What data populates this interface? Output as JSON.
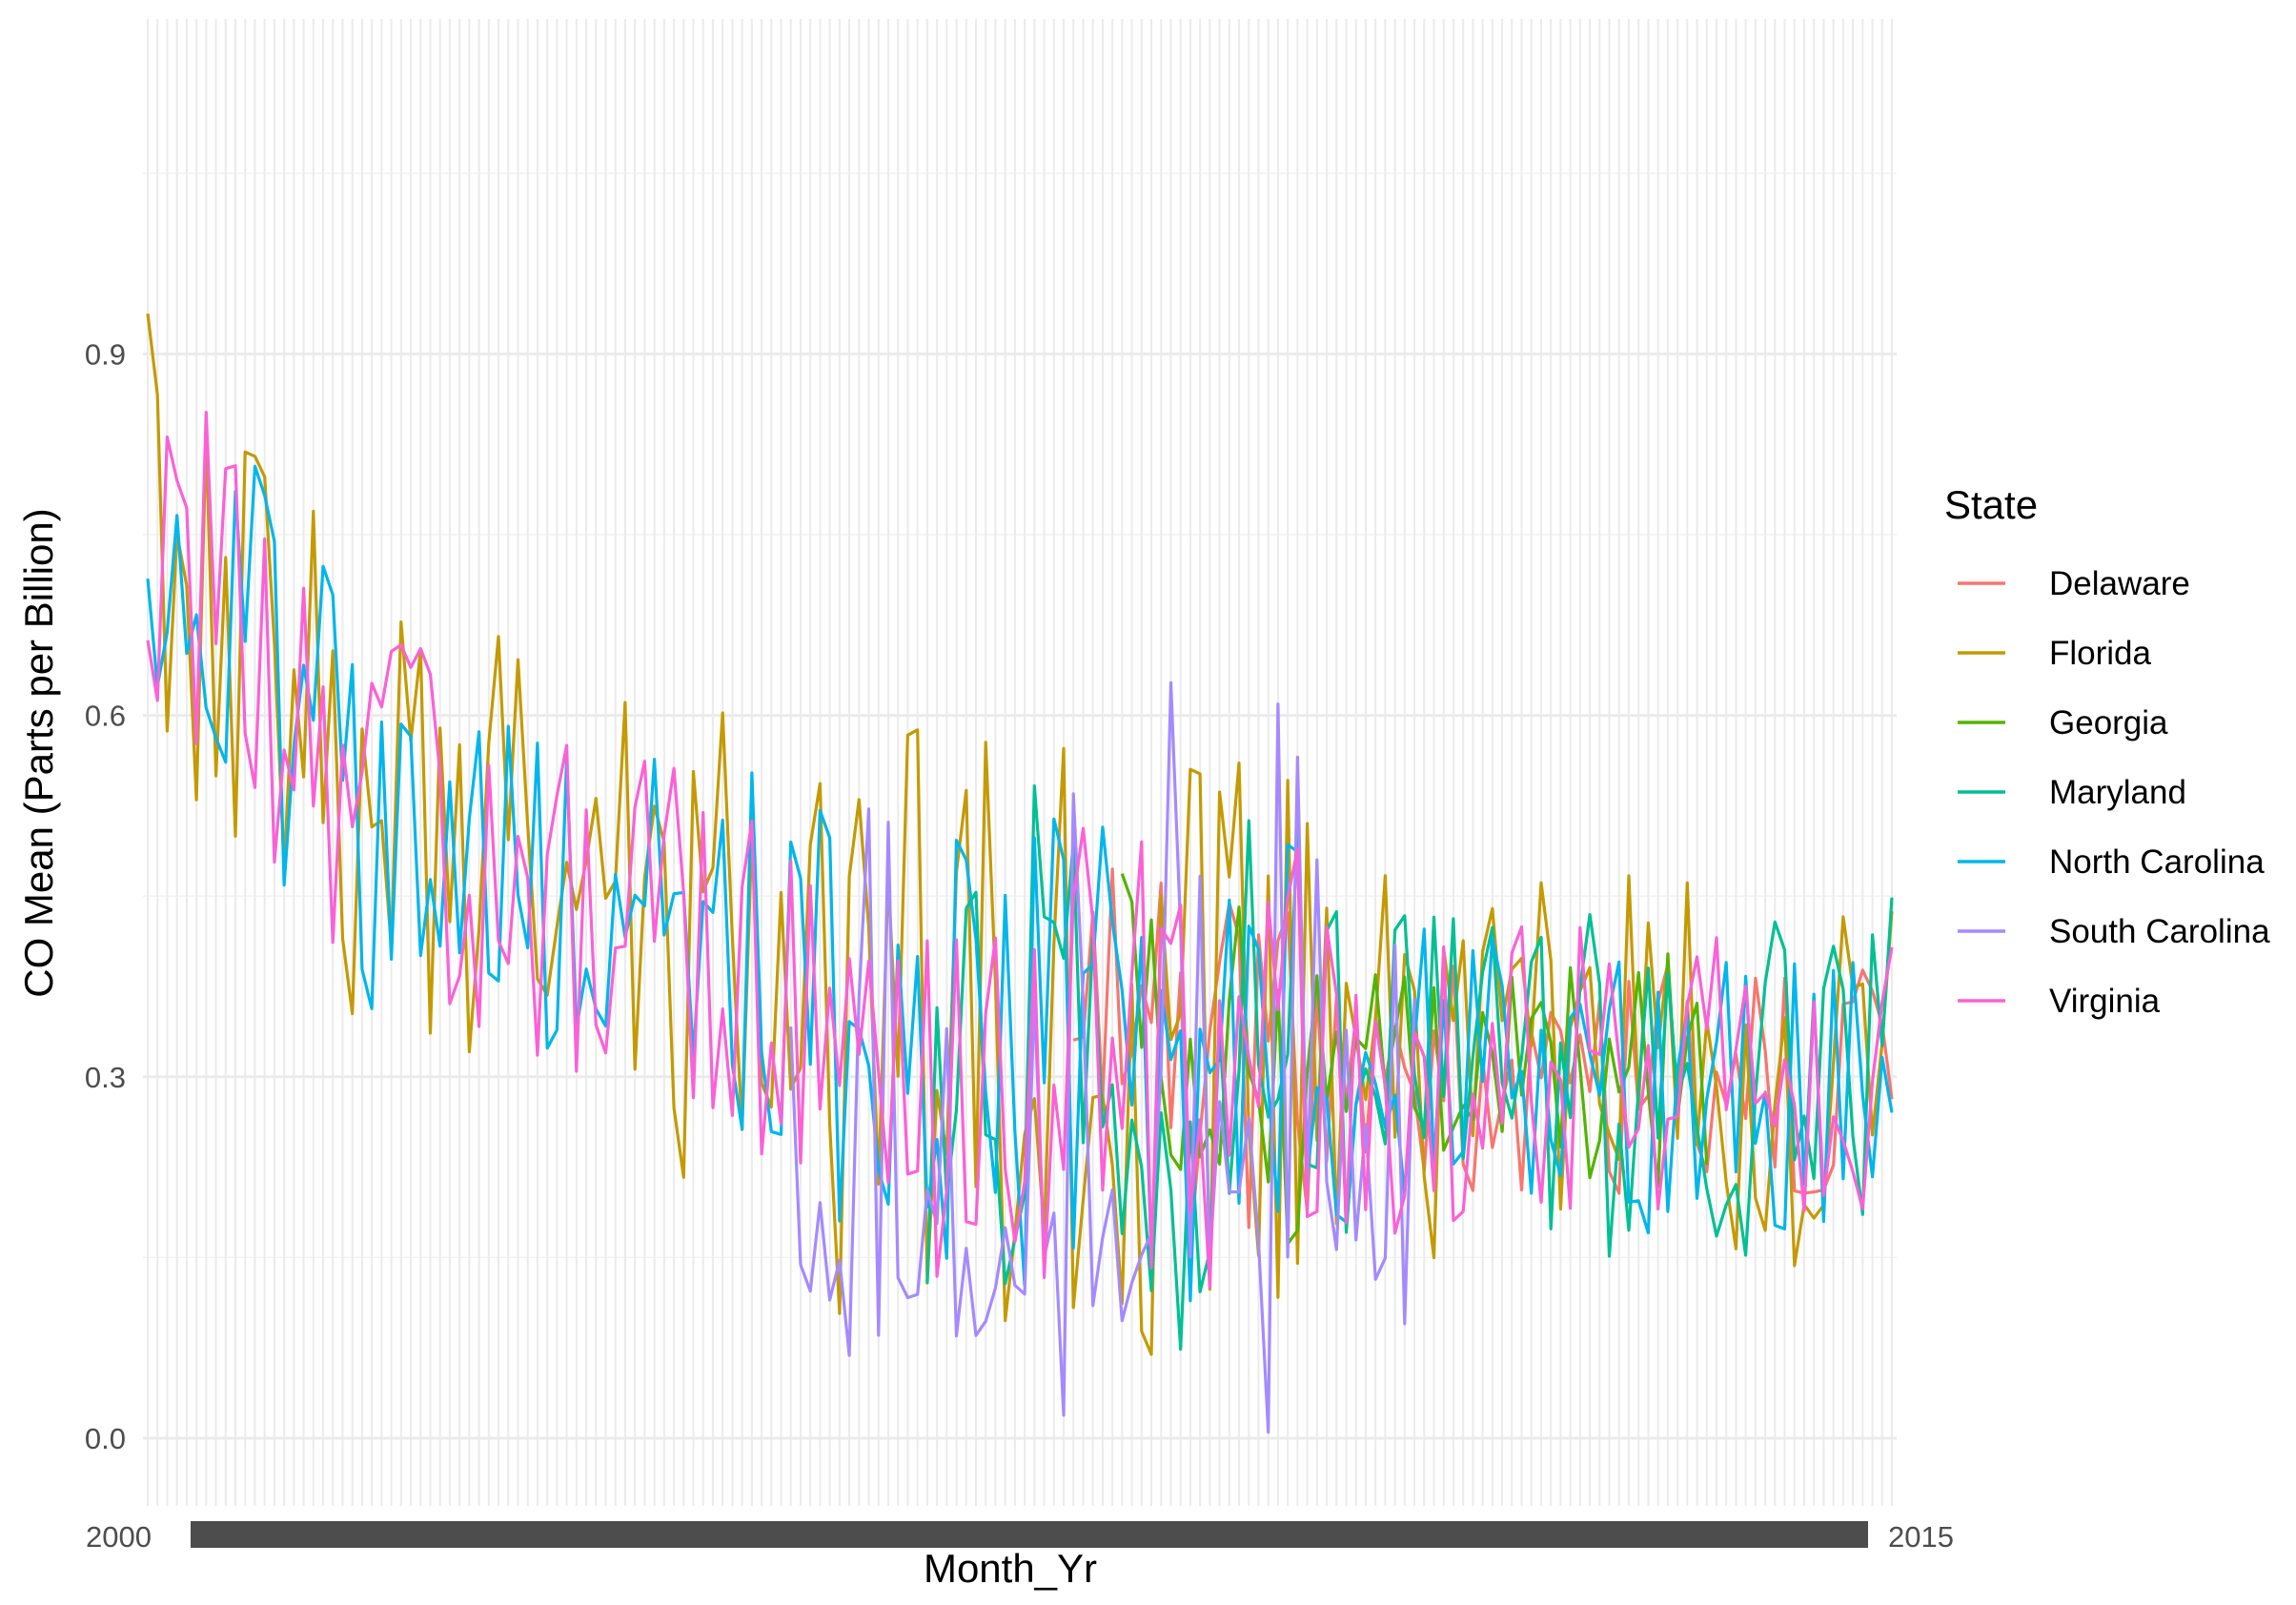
{
  "chart_data": {
    "type": "line",
    "title": "",
    "xlabel": "Month_Yr",
    "ylabel": "CO Mean (Parts per Billion)",
    "ylim": [
      -0.075,
      1.175
    ],
    "y_ticks": [
      "0.0",
      "0.3",
      "0.6",
      "0.9"
    ],
    "y_tick_values": [
      0,
      0.3,
      0.6,
      0.9
    ],
    "x_categories_count": 180,
    "x_tick_label_first": "2000",
    "x_tick_label_last": "2015",
    "grid": true,
    "legend_title": "State",
    "legend_position": "right",
    "series": [
      {
        "name": "Delaware",
        "color": "#F8766D"
      },
      {
        "name": "Florida",
        "color": "#C49A00"
      },
      {
        "name": "Georgia",
        "color": "#53B400"
      },
      {
        "name": "Maryland",
        "color": "#00C094"
      },
      {
        "name": "North Carolina",
        "color": "#00B6EB"
      },
      {
        "name": "South Carolina",
        "color": "#A58AFF"
      },
      {
        "name": "Virginia",
        "color": "#FB61D7"
      }
    ]
  }
}
